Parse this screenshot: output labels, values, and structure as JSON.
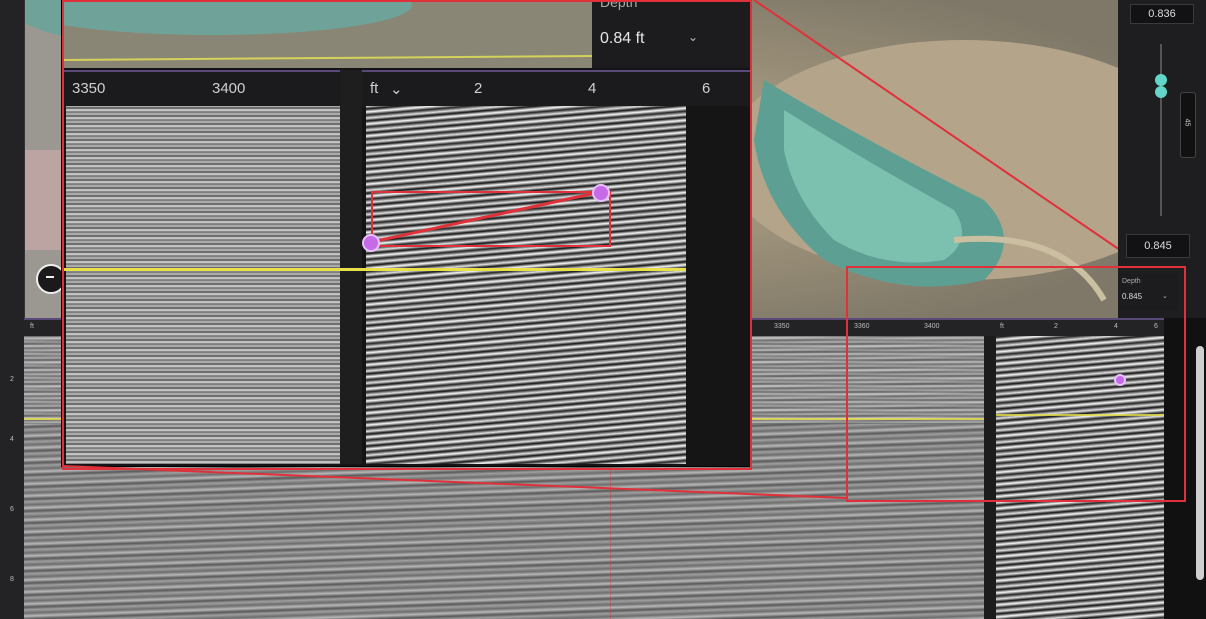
{
  "popup": {
    "depth_label": "Depth",
    "depth_value": "0.84 ft",
    "unit": "ft",
    "left_axis_ticks": [
      "3350",
      "3400"
    ],
    "right_axis_ticks": [
      "2",
      "4",
      "6"
    ]
  },
  "side_panel": {
    "top_value": "0.836",
    "bottom_value": "0.845",
    "slider_value": "45",
    "mini_depth_label": "Depth",
    "mini_depth_value": "0.845"
  },
  "bottom_panel": {
    "axis_left": "ft",
    "axis_ticks_left": [
      "3350",
      "3360",
      "3400"
    ],
    "axis_right_unit": "ft",
    "axis_ticks_right": [
      "2",
      "4",
      "6"
    ],
    "ruler_ticks": [
      "2",
      "4",
      "6",
      "8"
    ]
  },
  "colors": {
    "annotation_red": "#e0313a",
    "reference_yellow": "#e8e049",
    "marker_pink": "#c66ae8",
    "slider_teal": "#62d6c8",
    "panel_divider": "#5a4a7a"
  },
  "icons": {
    "compass": "compass-icon",
    "caret": "chevron-down-icon"
  }
}
